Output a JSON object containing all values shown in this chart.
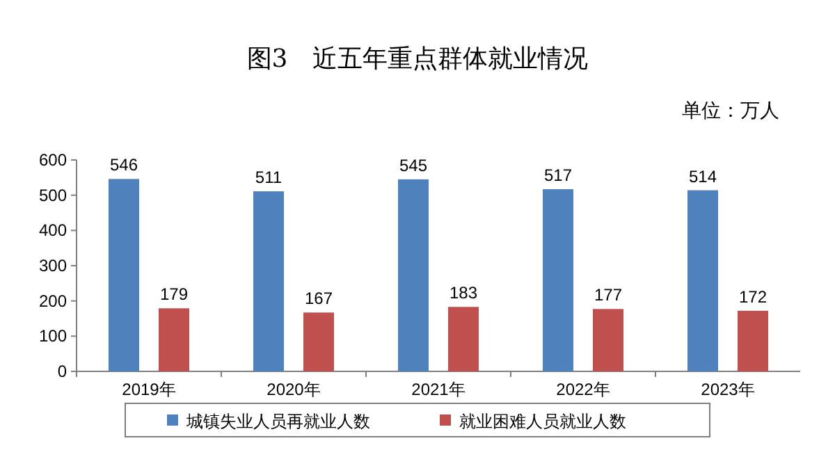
{
  "chart_data": {
    "type": "bar",
    "title": "图3　近五年重点群体就业情况",
    "annotations": [
      "单位：万人"
    ],
    "categories": [
      "2019年",
      "2020年",
      "2021年",
      "2022年",
      "2023年"
    ],
    "series": [
      {
        "name": "城镇失业人员再就业人数",
        "color": "#4f81bd",
        "values": [
          546,
          511,
          545,
          517,
          514
        ]
      },
      {
        "name": "就业困难人员就业人数",
        "color": "#c0504d",
        "values": [
          179,
          167,
          183,
          177,
          172
        ]
      }
    ],
    "ylim": [
      0,
      600
    ],
    "yticks": [
      0,
      100,
      200,
      300,
      400,
      500,
      600
    ],
    "data_labels": true,
    "legend": "bottom"
  }
}
